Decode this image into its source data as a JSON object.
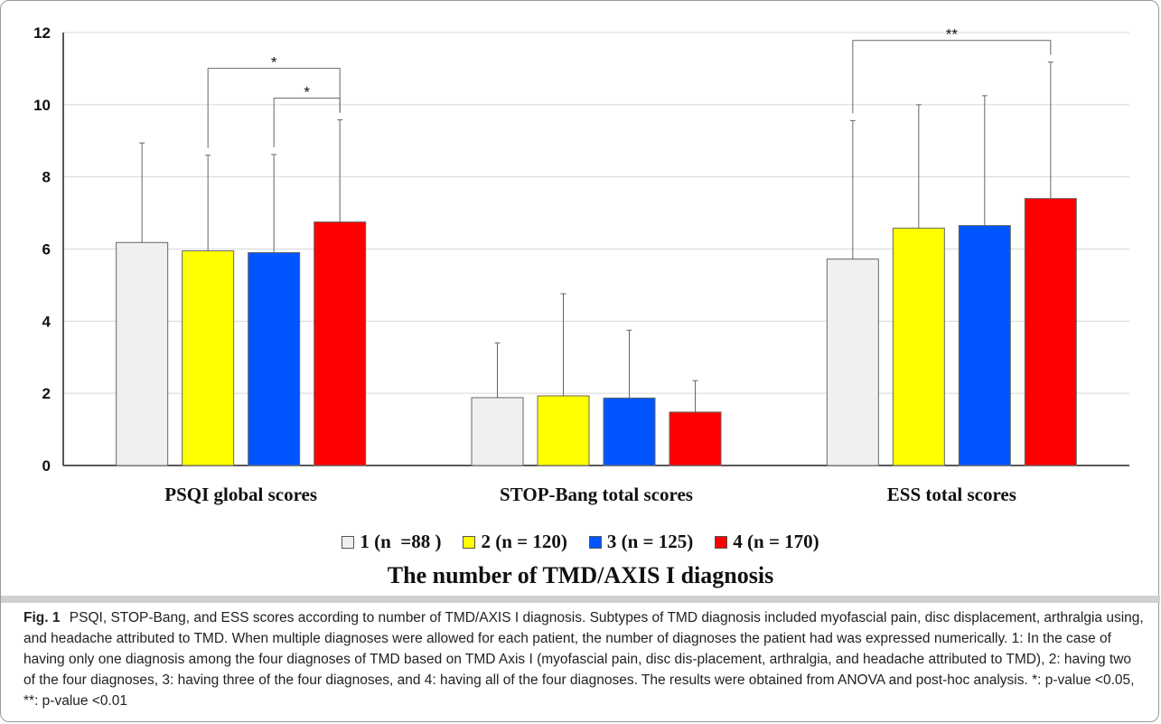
{
  "chart_data": {
    "type": "bar",
    "categories": [
      "PSQI global scores",
      "STOP-Bang total scores",
      "ESS total scores"
    ],
    "series": [
      {
        "name": "1 (n  =88 )",
        "color": "#f0f0f0",
        "values": [
          6.18,
          1.88,
          5.72
        ],
        "errors": [
          2.76,
          1.52,
          3.84
        ]
      },
      {
        "name": "2 (n = 120)",
        "color": "#ffff00",
        "values": [
          5.95,
          1.93,
          6.58
        ],
        "errors": [
          2.65,
          2.83,
          3.42
        ]
      },
      {
        "name": "3 (n = 125)",
        "color": "#0055ff",
        "values": [
          5.9,
          1.87,
          6.65
        ],
        "errors": [
          2.72,
          1.88,
          3.6
        ]
      },
      {
        "name": "4 (n = 170)",
        "color": "#ff0000",
        "values": [
          6.75,
          1.48,
          7.4
        ],
        "errors": [
          2.83,
          0.87,
          3.78
        ]
      }
    ],
    "ylim": [
      0,
      12
    ],
    "yticks": [
      0,
      2,
      4,
      6,
      8,
      10,
      12
    ],
    "xlabel": "The number of TMD/AXIS I diagnosis",
    "ylabel": "",
    "grid": true,
    "legend_position": "bottom",
    "significance": [
      {
        "category": "PSQI global scores",
        "from_series": 1,
        "to_series": 3,
        "label": "*"
      },
      {
        "category": "PSQI global scores",
        "from_series": 2,
        "to_series": 3,
        "label": "*"
      },
      {
        "category": "ESS total scores",
        "from_series": 0,
        "to_series": 3,
        "label": "**"
      }
    ]
  },
  "caption": {
    "label": "Fig. 1",
    "text": "PSQI, STOP-Bang, and ESS scores according to number of TMD/AXIS I diagnosis. Subtypes of TMD diagnosis included myofascial pain, disc displacement, arthralgia using, and headache attributed to TMD. When multiple diagnoses were allowed for each patient, the number of diagnoses the patient had was expressed numerically. 1: In the case of having only one diagnosis among the four diagnoses of TMD based on TMD Axis I (myofascial pain, disc dis-placement, arthralgia, and headache attributed to TMD), 2: having two of the four diagnoses, 3: having three of the four diagnoses, and 4: having all of the four diagnoses. The results were obtained from ANOVA and post-hoc analysis. *: p-value <0.05, **: p-value <0.01"
  }
}
